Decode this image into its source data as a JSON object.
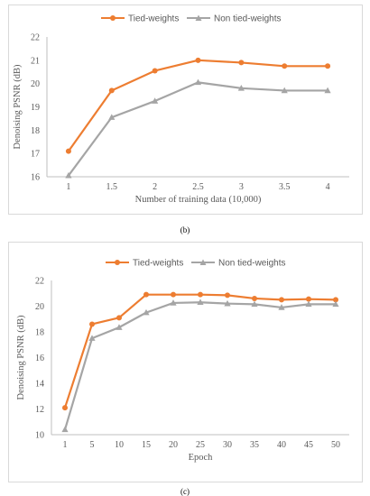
{
  "colors": {
    "tied": "#ED7D31",
    "nontied": "#A5A5A5",
    "axis": "#bfbfbf",
    "text": "#595959"
  },
  "chart_data": [
    {
      "type": "line",
      "caption": "(b)",
      "xlabel": "Number of training data (10,000)",
      "ylabel": "Denoising PSNR (dB)",
      "categories": [
        "1",
        "1.5",
        "2",
        "2.5",
        "3",
        "3.5",
        "4"
      ],
      "ylim": [
        16,
        22
      ],
      "yticks": [
        16,
        17,
        18,
        19,
        20,
        21,
        22
      ],
      "legend_position": "top",
      "series": [
        {
          "name": "Tied-weights",
          "marker": "circle",
          "values": [
            17.1,
            19.7,
            20.55,
            21.0,
            20.9,
            20.75,
            20.75
          ]
        },
        {
          "name": "Non tied-weights",
          "marker": "triangle",
          "values": [
            16.05,
            18.55,
            19.25,
            20.05,
            19.8,
            19.7,
            19.7
          ]
        }
      ]
    },
    {
      "type": "line",
      "caption": "(c)",
      "xlabel": "Epoch",
      "ylabel": "Denoising PSNR (dB)",
      "categories": [
        "1",
        "5",
        "10",
        "15",
        "20",
        "25",
        "30",
        "35",
        "40",
        "45",
        "50"
      ],
      "ylim": [
        10,
        22
      ],
      "yticks": [
        10,
        12,
        14,
        16,
        18,
        20,
        22
      ],
      "legend_position": "top",
      "series": [
        {
          "name": "Tied-weights",
          "marker": "circle",
          "values": [
            12.1,
            18.6,
            19.1,
            20.9,
            20.9,
            20.9,
            20.85,
            20.6,
            20.5,
            20.55,
            20.5
          ]
        },
        {
          "name": "Non tied-weights",
          "marker": "triangle",
          "values": [
            10.4,
            17.5,
            18.35,
            19.5,
            20.25,
            20.3,
            20.2,
            20.15,
            19.9,
            20.15,
            20.15
          ]
        }
      ]
    }
  ]
}
